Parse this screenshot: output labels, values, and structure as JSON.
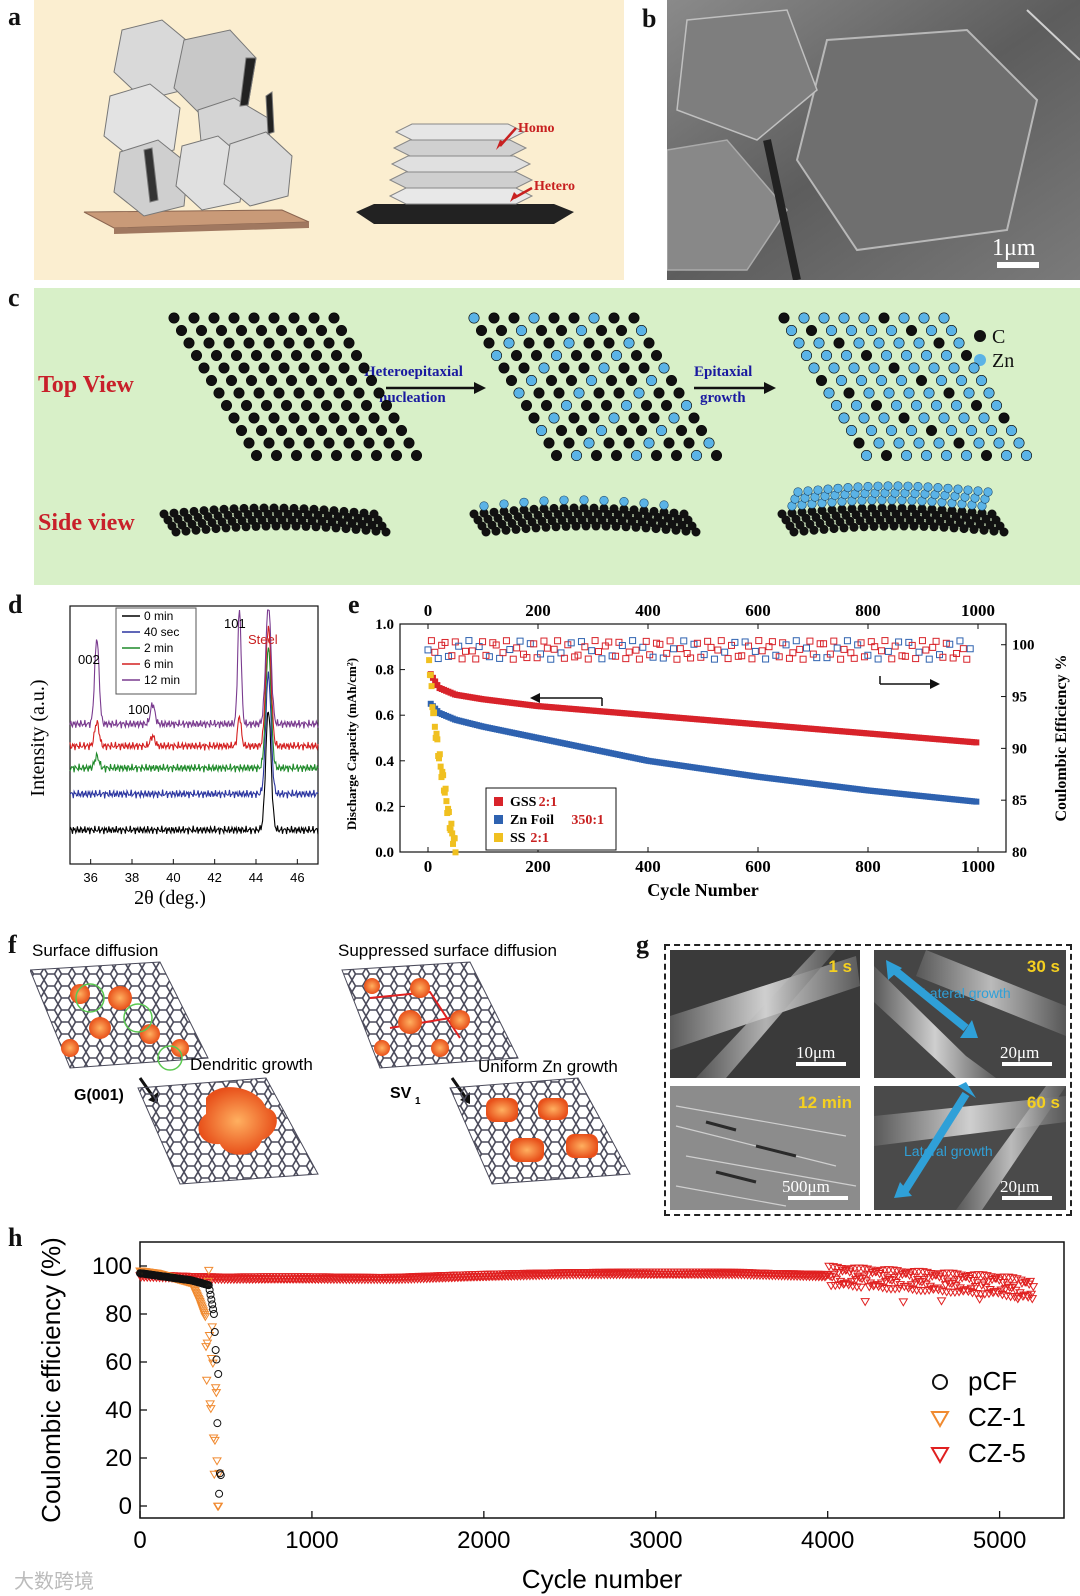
{
  "labels": {
    "a": "a",
    "b": "b",
    "c": "c",
    "d": "d",
    "e": "e",
    "f": "f",
    "g": "g",
    "h": "h"
  },
  "panel_a": {
    "homo": "Homo",
    "hetero": "Hetero"
  },
  "panel_b": {
    "scale": "1μm"
  },
  "panel_c": {
    "top_view": "Top View",
    "side_view": "Side view",
    "step1_line1": "Heteroepitaxial",
    "step1_line2": "nucleation",
    "step2_line1": "Epitaxial",
    "step2_line2": "growth",
    "legend_c": "C",
    "legend_zn": "Zn"
  },
  "panel_f": {
    "left_title": "Surface diffusion",
    "left_growth": "Dendritic growth",
    "left_sub": "G(001)",
    "right_title": "Suppressed surface diffusion",
    "right_growth": "Uniform Zn growth",
    "right_sub": "SV",
    "right_sub_index": "1"
  },
  "panel_g": {
    "t1": "1 s",
    "t2": "30 s",
    "t3": "12 min",
    "t4": "60 s",
    "s1": "10μm",
    "s2": "20μm",
    "s3": "500μm",
    "s4": "20μm",
    "lateral1": "Lateral growth",
    "lateral2": "Lateral growth"
  },
  "watermark": "大数跨境",
  "colors": {
    "cream": "#fbeed0",
    "mint": "#d8f0c8",
    "red": "#d8232a",
    "blue": "#2e62b0",
    "yellow": "#f0c020",
    "orange": "#f08a30"
  },
  "chart_data": [
    {
      "id": "d",
      "type": "line",
      "xlabel": "2θ (deg.)",
      "ylabel": "Intensity (a.u.)",
      "xlim": [
        35,
        47
      ],
      "xticks": [
        36,
        38,
        40,
        42,
        44,
        46
      ],
      "peak_labels": [
        "002",
        "100",
        "101",
        "Steel"
      ],
      "series": [
        {
          "name": "0 min",
          "color": "#000000",
          "offset": 0
        },
        {
          "name": "40 sec",
          "color": "#2b35a0",
          "offset": 1
        },
        {
          "name": "2 min",
          "color": "#1f8a2a",
          "offset": 2
        },
        {
          "name": "6 min",
          "color": "#d42020",
          "offset": 3
        },
        {
          "name": "12 min",
          "color": "#7a3b8f",
          "offset": 4
        }
      ]
    },
    {
      "id": "e",
      "type": "scatter",
      "xlabel": "Cycle Number",
      "ylabel_left": "Discharge Capacity (mAh/cm²)",
      "ylabel_right": "Coulombic Efficiency %",
      "xlim": [
        0,
        1000
      ],
      "xticks": [
        0,
        200,
        400,
        600,
        800,
        1000
      ],
      "ylim_left": [
        0,
        1.0
      ],
      "yticks_left": [
        "0.0",
        "0.2",
        "0.4",
        "0.6",
        "0.8",
        "1.0"
      ],
      "ylim_right": [
        80,
        102
      ],
      "yticks_right": [
        "80",
        "85",
        "90",
        "95",
        "100"
      ],
      "legend": [
        {
          "name": "GSS",
          "ratio": "2:1",
          "color": "#d8232a"
        },
        {
          "name": "Zn Foil",
          "ratio": "350:1",
          "color": "#2e62b0"
        },
        {
          "name": "SS",
          "ratio": "2:1",
          "color": "#f0c020"
        }
      ],
      "capacity_series": [
        {
          "name": "GSS 2:1",
          "x": [
            5,
            20,
            50,
            100,
            200,
            300,
            400,
            600,
            800,
            1000
          ],
          "y": [
            0.78,
            0.72,
            0.69,
            0.67,
            0.64,
            0.62,
            0.6,
            0.56,
            0.52,
            0.48
          ]
        },
        {
          "name": "Zn Foil 350:1",
          "x": [
            5,
            20,
            50,
            100,
            200,
            300,
            400,
            600,
            800,
            1000
          ],
          "y": [
            0.65,
            0.61,
            0.58,
            0.55,
            0.5,
            0.45,
            0.4,
            0.33,
            0.27,
            0.22
          ]
        },
        {
          "name": "SS 2:1",
          "x": [
            2,
            10,
            20,
            30,
            40,
            50
          ],
          "y": [
            0.85,
            0.6,
            0.42,
            0.28,
            0.12,
            0.02
          ]
        }
      ],
      "ce_level": 99.5
    },
    {
      "id": "h",
      "type": "scatter",
      "xlabel": "Cycle number",
      "ylabel": "Coulombic efficiency (%)",
      "xlim": [
        0,
        5200
      ],
      "xticks": [
        0,
        1000,
        2000,
        3000,
        4000,
        5000
      ],
      "ylim": [
        -5,
        110
      ],
      "yticks": [
        0,
        20,
        40,
        60,
        80,
        100
      ],
      "legend": [
        {
          "name": "pCF",
          "marker": "circle",
          "color": "#111111"
        },
        {
          "name": "CZ-1",
          "marker": "triangle-down",
          "color": "#f08a30"
        },
        {
          "name": "CZ-5",
          "marker": "triangle-down",
          "color": "#e02020"
        }
      ],
      "series": [
        {
          "name": "pCF",
          "x": [
            0,
            100,
            200,
            300,
            400,
            430,
            450,
            460,
            470
          ],
          "y": [
            97,
            96,
            95,
            94,
            92,
            80,
            50,
            20,
            2
          ]
        },
        {
          "name": "CZ-1",
          "x": [
            0,
            100,
            200,
            300,
            350,
            400,
            420,
            440,
            460
          ],
          "y": [
            98,
            97,
            95,
            93,
            85,
            75,
            50,
            30,
            5
          ]
        },
        {
          "name": "CZ-5",
          "x": [
            0,
            500,
            1000,
            1500,
            2000,
            2500,
            3000,
            3500,
            4000,
            4500,
            5000,
            5200
          ],
          "y": [
            96,
            95,
            95,
            95,
            96,
            97,
            97,
            97,
            96,
            94,
            92,
            90
          ]
        }
      ]
    }
  ]
}
